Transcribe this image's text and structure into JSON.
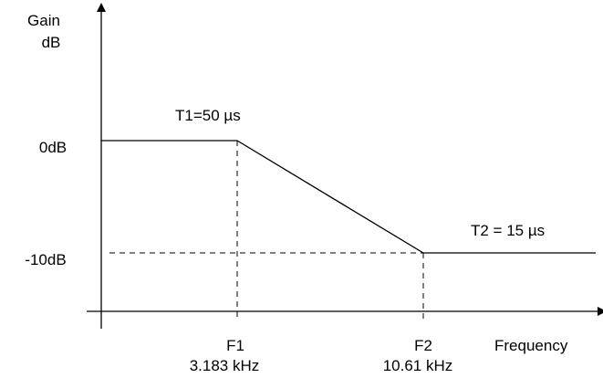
{
  "chart_data": {
    "type": "line",
    "ylabel": [
      "Gain",
      "dB"
    ],
    "xlabel": "Frequency",
    "y_ticks": [
      "0dB",
      "-10dB"
    ],
    "series": [
      {
        "points": [
          {
            "x": "start",
            "y": 0
          },
          {
            "x": "F1",
            "y": 0
          },
          {
            "x": "F2",
            "y": -10
          },
          {
            "x": "end",
            "y": -10
          }
        ]
      }
    ],
    "x_markers": [
      {
        "label": "F1",
        "value": "3.183 kHz"
      },
      {
        "label": "F2",
        "value": "10.61 kHz"
      }
    ],
    "annotations": [
      "T1=50 µs",
      "T2 = 15 µs"
    ],
    "grid": false
  },
  "labels": {
    "gain": "Gain",
    "db": "dB",
    "zero_db": "0dB",
    "minus_ten_db": "-10dB",
    "t1": "T1=50 µs",
    "t2": "T2 = 15 µs",
    "f1": "F1",
    "f1_value": "3.183 kHz",
    "f2": "F2",
    "f2_value": "10.61 kHz",
    "frequency": "Frequency"
  }
}
